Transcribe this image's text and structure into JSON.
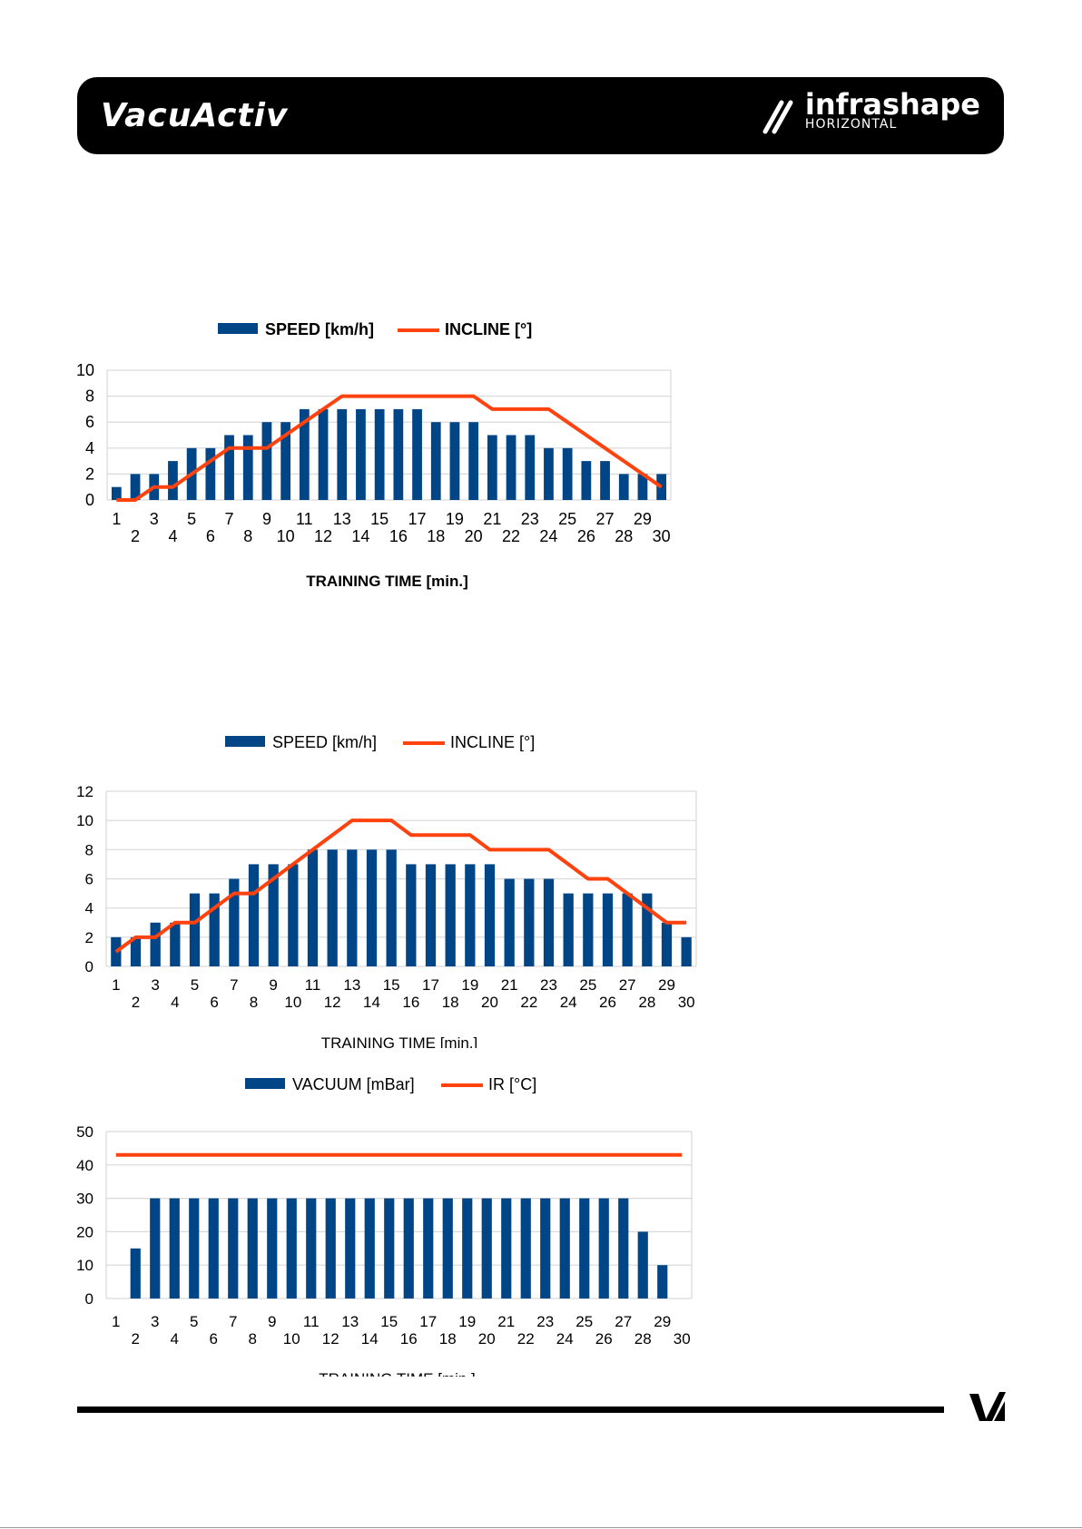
{
  "header": {
    "brand_left": "VacuActiv",
    "brand_right_main": "infrashape",
    "brand_right_sub": "HORIZONTAL"
  },
  "colors": {
    "bar": "#004586",
    "line": "#ff420e",
    "grid": "#d9d9d9",
    "axis_text": "#000000"
  },
  "chart_data": [
    {
      "type": "bar+line",
      "bold_text": true,
      "xlabel": "TRAINING TIME [min.]",
      "ylabel": "",
      "ylim": [
        0,
        10
      ],
      "yticks": [
        0,
        2,
        4,
        6,
        8,
        10
      ],
      "legend_position": "top",
      "categories": [
        "1",
        "2",
        "3",
        "4",
        "5",
        "6",
        "7",
        "8",
        "9",
        "10",
        "11",
        "12",
        "13",
        "14",
        "15",
        "16",
        "17",
        "18",
        "19",
        "20",
        "21",
        "22",
        "23",
        "24",
        "25",
        "26",
        "27",
        "28",
        "29",
        "30"
      ],
      "series": [
        {
          "name": "SPEED [km/h]",
          "kind": "bar",
          "values": [
            1,
            2,
            2,
            3,
            4,
            4,
            5,
            5,
            6,
            6,
            7,
            7,
            7,
            7,
            7,
            7,
            7,
            6,
            6,
            6,
            5,
            5,
            5,
            4,
            4,
            3,
            3,
            2,
            2,
            2
          ]
        },
        {
          "name": "INCLINE [°]",
          "kind": "line",
          "values": [
            0,
            0,
            1,
            1,
            2,
            3,
            4,
            4,
            4,
            5,
            6,
            7,
            8,
            8,
            8,
            8,
            8,
            8,
            8,
            8,
            7,
            7,
            7,
            7,
            6,
            5,
            4,
            3,
            2,
            1
          ]
        }
      ]
    },
    {
      "type": "bar+line",
      "bold_text": false,
      "xlabel": "TRAINING TIME [min.]",
      "ylabel": "",
      "ylim": [
        0,
        12
      ],
      "yticks": [
        0,
        2,
        4,
        6,
        8,
        10,
        12
      ],
      "legend_position": "top",
      "categories": [
        "1",
        "2",
        "3",
        "4",
        "5",
        "6",
        "7",
        "8",
        "9",
        "10",
        "11",
        "12",
        "13",
        "14",
        "15",
        "16",
        "17",
        "18",
        "19",
        "20",
        "21",
        "22",
        "23",
        "24",
        "25",
        "26",
        "27",
        "28",
        "29",
        "30"
      ],
      "series": [
        {
          "name": "SPEED [km/h]",
          "kind": "bar",
          "values": [
            2,
            2,
            3,
            3,
            5,
            5,
            6,
            7,
            7,
            7,
            8,
            8,
            8,
            8,
            8,
            7,
            7,
            7,
            7,
            7,
            6,
            6,
            6,
            5,
            5,
            5,
            5,
            5,
            3,
            2
          ]
        },
        {
          "name": "INCLINE [°]",
          "kind": "line",
          "values": [
            1,
            2,
            2,
            3,
            3,
            4,
            5,
            5,
            6,
            7,
            8,
            9,
            10,
            10,
            10,
            9,
            9,
            9,
            9,
            8,
            8,
            8,
            8,
            7,
            6,
            6,
            5,
            4,
            3,
            3
          ]
        }
      ]
    },
    {
      "type": "bar+line",
      "bold_text": false,
      "xlabel": "TRAINING TIME [min.]",
      "ylabel": "",
      "ylim": [
        0,
        50
      ],
      "yticks": [
        0,
        10,
        20,
        30,
        40,
        50
      ],
      "legend_position": "top",
      "categories": [
        "1",
        "2",
        "3",
        "4",
        "5",
        "6",
        "7",
        "8",
        "9",
        "10",
        "11",
        "12",
        "13",
        "14",
        "15",
        "16",
        "17",
        "18",
        "19",
        "20",
        "21",
        "22",
        "23",
        "24",
        "25",
        "26",
        "27",
        "28",
        "29",
        "30"
      ],
      "series": [
        {
          "name": "VACUUM [mBar]",
          "kind": "bar",
          "values": [
            0,
            15,
            30,
            30,
            30,
            30,
            30,
            30,
            30,
            30,
            30,
            30,
            30,
            30,
            30,
            30,
            30,
            30,
            30,
            30,
            30,
            30,
            30,
            30,
            30,
            30,
            30,
            20,
            10,
            0
          ]
        },
        {
          "name": "IR [°C]",
          "kind": "line",
          "values": [
            43,
            43,
            43,
            43,
            43,
            43,
            43,
            43,
            43,
            43,
            43,
            43,
            43,
            43,
            43,
            43,
            43,
            43,
            43,
            43,
            43,
            43,
            43,
            43,
            43,
            43,
            43,
            43,
            43,
            43
          ]
        }
      ]
    }
  ]
}
